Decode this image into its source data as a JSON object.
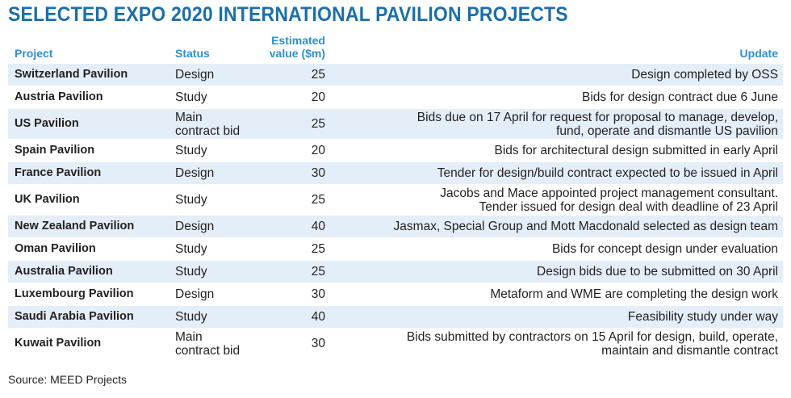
{
  "title": "SELECTED EXPO 2020 INTERNATIONAL PAVILION PROJECTS",
  "columns": {
    "project": "Project",
    "status": "Status",
    "value": "Estimated\nvalue ($m)",
    "update": "Update"
  },
  "rows": [
    {
      "project": "Switzerland Pavilion",
      "status": "Design",
      "value": "25",
      "update": "Design completed by OSS"
    },
    {
      "project": "Austria Pavilion",
      "status": "Study",
      "value": "20",
      "update": "Bids for design contract due 6 June"
    },
    {
      "project": "US Pavilion",
      "status": "Main\ncontract bid",
      "value": "25",
      "update": "Bids due on 17 April for request for proposal to manage, develop,\nfund, operate and dismantle US pavilion"
    },
    {
      "project": "Spain Pavilion",
      "status": "Study",
      "value": "20",
      "update": "Bids for architectural design submitted in early April"
    },
    {
      "project": "France Pavilion",
      "status": "Design",
      "value": "30",
      "update": "Tender for design/build contract expected to be issued in April"
    },
    {
      "project": "UK Pavilion",
      "status": "Study",
      "value": "25",
      "update": "Jacobs and Mace appointed project management consultant.\nTender issued for design deal with deadline of 23 April"
    },
    {
      "project": "New Zealand Pavilion",
      "status": "Design",
      "value": "40",
      "update": "Jasmax, Special Group and Mott Macdonald selected as design team"
    },
    {
      "project": "Oman Pavilion",
      "status": "Study",
      "value": "25",
      "update": "Bids for concept design under evaluation"
    },
    {
      "project": "Australia Pavilion",
      "status": "Study",
      "value": "25",
      "update": "Design bids due to be submitted on 30 April"
    },
    {
      "project": "Luxembourg Pavilion",
      "status": "Design",
      "value": "30",
      "update": "Metaform and WME are completing the design work"
    },
    {
      "project": "Saudi Arabia Pavilion",
      "status": "Study",
      "value": "40",
      "update": "Feasibility study under way"
    },
    {
      "project": "Kuwait Pavilion",
      "status": "Main\ncontract bid",
      "value": "30",
      "update": "Bids submitted by contractors on 15 April for design, build, operate,\nmaintain and dismantle contract"
    }
  ],
  "source": "Source: MEED Projects",
  "colors": {
    "title": "#1b6fa8",
    "header": "#2e8fd0",
    "row_shade": "#e4eef8"
  }
}
